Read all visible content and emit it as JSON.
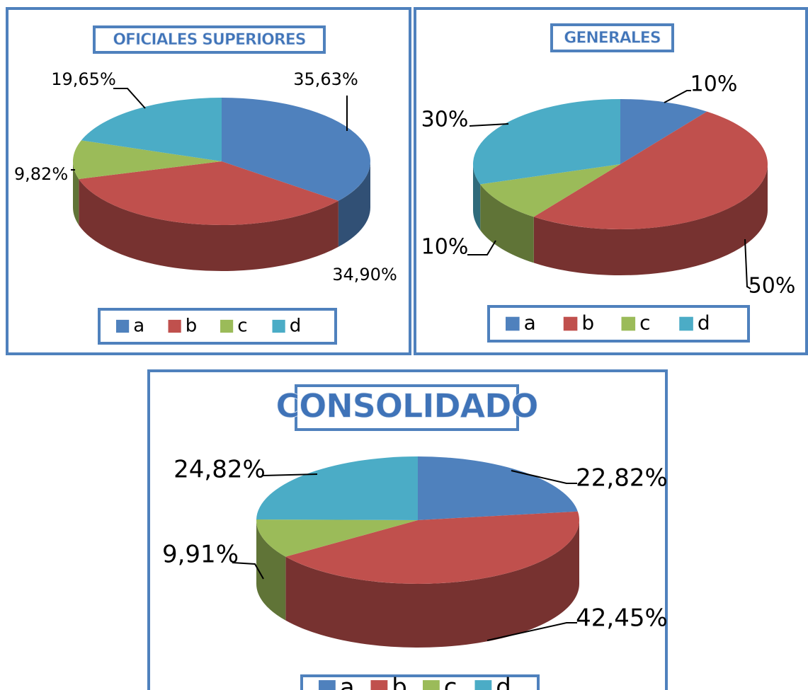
{
  "chart_data": [
    {
      "type": "pie",
      "title": "OFICIALES SUPERIORES",
      "categories": [
        "a",
        "b",
        "c",
        "d"
      ],
      "values": [
        35.63,
        34.9,
        9.82,
        19.65
      ],
      "value_labels": [
        "35,63%",
        "34,90%",
        "9,82%",
        "19,65%"
      ],
      "colors": [
        "#4f81bd",
        "#c0504d",
        "#9bbb59",
        "#4bacc6"
      ],
      "legend": "bottom"
    },
    {
      "type": "pie",
      "title": "GENERALES",
      "categories": [
        "a",
        "b",
        "c",
        "d"
      ],
      "values": [
        10,
        50,
        10,
        30
      ],
      "value_labels": [
        "10%",
        "50%",
        "10%",
        "30%"
      ],
      "colors": [
        "#4f81bd",
        "#c0504d",
        "#9bbb59",
        "#4bacc6"
      ],
      "legend": "bottom"
    },
    {
      "type": "pie",
      "title": "CONSOLIDADO",
      "categories": [
        "a",
        "b",
        "c",
        "d"
      ],
      "values": [
        22.82,
        42.45,
        9.91,
        24.82
      ],
      "value_labels": [
        "22,82%",
        "42,45%",
        "9,91%",
        "24,82%"
      ],
      "colors": [
        "#4f81bd",
        "#c0504d",
        "#9bbb59",
        "#4bacc6"
      ],
      "legend": "bottom"
    }
  ]
}
